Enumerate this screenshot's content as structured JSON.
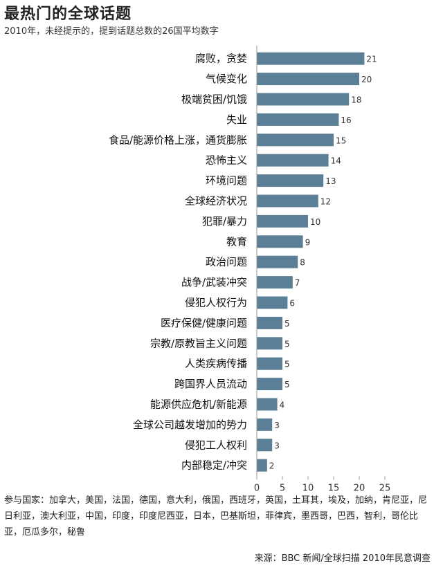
{
  "header": {
    "title": "最热门的全球话题",
    "subtitle": "2010年，未经提示的，提到话题总数的26国平均数字"
  },
  "chart_data": {
    "type": "bar",
    "orientation": "horizontal",
    "categories": [
      "腐败，贪婪",
      "气候变化",
      "极端贫困/饥饿",
      "失业",
      "食品/能源价格上涨，通货膨胀",
      "恐怖主义",
      "环境问题",
      "全球经济状况",
      "犯罪/暴力",
      "教育",
      "政治问题",
      "战争/武装冲突",
      "侵犯人权行为",
      "医疗保健/健康问题",
      "宗教/原教旨主义问题",
      "人类疾病传播",
      "跨国界人员流动",
      "能源供应危机/新能源",
      "全球公司越发增加的势力",
      "侵犯工人权利",
      "内部稳定/冲突"
    ],
    "values": [
      21,
      20,
      18,
      16,
      15,
      14,
      13,
      12,
      10,
      9,
      8,
      7,
      6,
      5,
      5,
      5,
      5,
      4,
      3,
      3,
      2
    ],
    "xlim": [
      0,
      25
    ],
    "xticks": [
      "0",
      "5",
      "10",
      "15",
      "20",
      "25"
    ],
    "bar_color": "#5b7f96",
    "grid": false,
    "legend": "none"
  },
  "footer": {
    "countries": "参与国家：加拿大，美国，法国，德国，意大利，俄国，西班牙，英国，土耳其，埃及，加纳，肯尼亚，尼日利亚，澳大利亚，中国，印度，印度尼西亚，日本，巴基斯坦，菲律宾，墨西哥，巴西，智利，哥伦比亚，厄瓜多尔，秘鲁",
    "source": "来源：BBC 新闻/全球扫描 2010年民意调查"
  }
}
